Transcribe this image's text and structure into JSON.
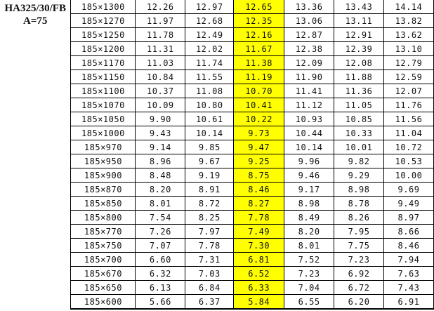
{
  "model": {
    "line1": "HA325/30/FB",
    "line2": "A=75"
  },
  "highlight_color": "#ffff00",
  "highlight_column": 2,
  "rows": [
    {
      "size": "185×1300",
      "values": [
        "12.26",
        "12.97",
        "12.65",
        "13.36",
        "13.43",
        "14.14"
      ]
    },
    {
      "size": "185×1270",
      "values": [
        "11.97",
        "12.68",
        "12.35",
        "13.06",
        "13.11",
        "13.82"
      ]
    },
    {
      "size": "185×1250",
      "values": [
        "11.78",
        "12.49",
        "12.16",
        "12.87",
        "12.91",
        "13.62"
      ]
    },
    {
      "size": "185×1200",
      "values": [
        "11.31",
        "12.02",
        "11.67",
        "12.38",
        "12.39",
        "13.10"
      ]
    },
    {
      "size": "185×1170",
      "values": [
        "11.03",
        "11.74",
        "11.38",
        "12.09",
        "12.08",
        "12.79"
      ]
    },
    {
      "size": "185×1150",
      "values": [
        "10.84",
        "11.55",
        "11.19",
        "11.90",
        "11.88",
        "12.59"
      ]
    },
    {
      "size": "185×1100",
      "values": [
        "10.37",
        "11.08",
        "10.70",
        "11.41",
        "11.36",
        "12.07"
      ]
    },
    {
      "size": "185×1070",
      "values": [
        "10.09",
        "10.80",
        "10.41",
        "11.12",
        "11.05",
        "11.76"
      ]
    },
    {
      "size": "185×1050",
      "values": [
        "9.90",
        "10.61",
        "10.22",
        "10.93",
        "10.85",
        "11.56"
      ]
    },
    {
      "size": "185×1000",
      "values": [
        "9.43",
        "10.14",
        "9.73",
        "10.44",
        "10.33",
        "11.04"
      ]
    },
    {
      "size": "185×970",
      "values": [
        "9.14",
        "9.85",
        "9.47",
        "10.14",
        "10.01",
        "10.72"
      ]
    },
    {
      "size": "185×950",
      "values": [
        "8.96",
        "9.67",
        "9.25",
        "9.96",
        "9.82",
        "10.53"
      ]
    },
    {
      "size": "185×900",
      "values": [
        "8.48",
        "9.19",
        "8.75",
        "9.46",
        "9.29",
        "10.00"
      ]
    },
    {
      "size": "185×870",
      "values": [
        "8.20",
        "8.91",
        "8.46",
        "9.17",
        "8.98",
        "9.69"
      ]
    },
    {
      "size": "185×850",
      "values": [
        "8.01",
        "8.72",
        "8.27",
        "8.98",
        "8.78",
        "9.49"
      ]
    },
    {
      "size": "185×800",
      "values": [
        "7.54",
        "8.25",
        "7.78",
        "8.49",
        "8.26",
        "8.97"
      ]
    },
    {
      "size": "185×770",
      "values": [
        "7.26",
        "7.97",
        "7.49",
        "8.20",
        "7.95",
        "8.66"
      ]
    },
    {
      "size": "185×750",
      "values": [
        "7.07",
        "7.78",
        "7.30",
        "8.01",
        "7.75",
        "8.46"
      ]
    },
    {
      "size": "185×700",
      "values": [
        "6.60",
        "7.31",
        "6.81",
        "7.52",
        "7.23",
        "7.94"
      ]
    },
    {
      "size": "185×670",
      "values": [
        "6.32",
        "7.03",
        "6.52",
        "7.23",
        "6.92",
        "7.63"
      ]
    },
    {
      "size": "185×650",
      "values": [
        "6.13",
        "6.84",
        "6.33",
        "7.04",
        "6.72",
        "7.43"
      ]
    },
    {
      "size": "185×600",
      "values": [
        "5.66",
        "6.37",
        "5.84",
        "6.55",
        "6.20",
        "6.91"
      ]
    }
  ]
}
